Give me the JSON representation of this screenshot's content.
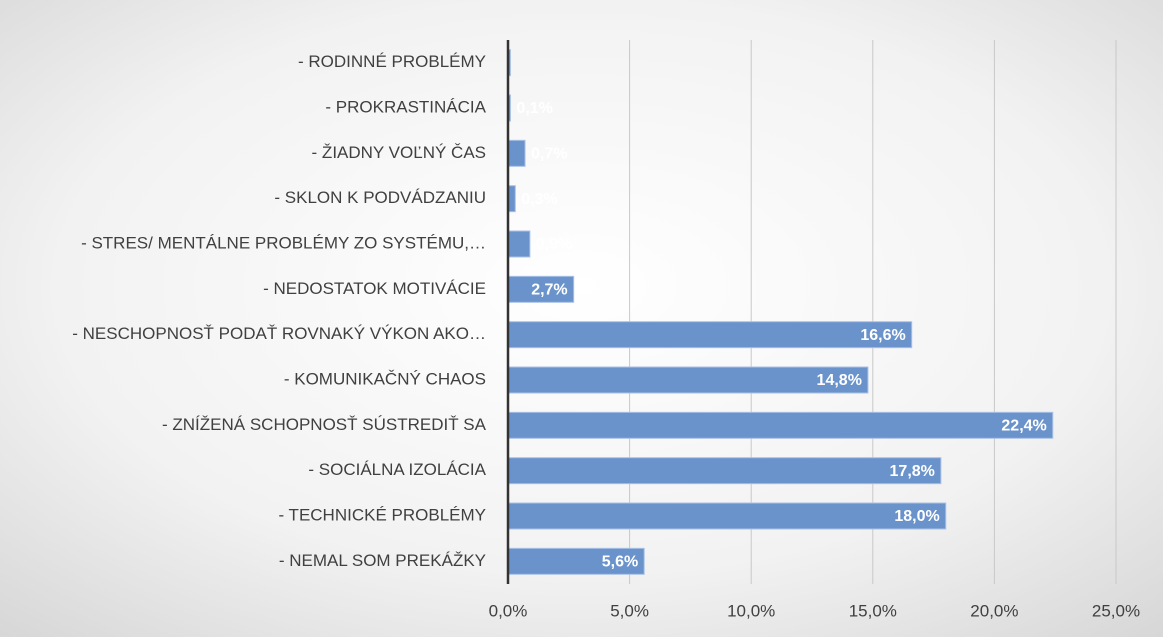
{
  "chart_data": {
    "type": "barh",
    "categories": [
      "- RODINNÉ PROBLÉMY",
      "- PROKRASTINÁCIA",
      "- ŽIADNY VOĽNÝ ČAS",
      "- SKLON K PODVÁDZANIU",
      "- STRES/ MENTÁLNE PROBLÉMY ZO SYSTÉMU,…",
      "- NEDOSTATOK MOTIVÁCIE",
      "- NESCHOPNOSŤ PODAŤ ROVNAKÝ VÝKON AKO…",
      "- KOMUNIKAČNÝ CHAOS",
      "- ZNÍŽENÁ SCHOPNOSŤ SÚSTREDIŤ SA",
      "- SOCIÁLNA IZOLÁCIA",
      "- TECHNICKÉ PROBLÉMY",
      "- NEMAL SOM PREKÁŽKY"
    ],
    "values": [
      0.1,
      0.1,
      0.7,
      0.3,
      0.9,
      2.7,
      16.6,
      14.8,
      22.4,
      17.8,
      18.0,
      5.6
    ],
    "value_labels": [
      null,
      "0,1%",
      "0,7%",
      "0,3%",
      "0,9%",
      "2,7%",
      "16,6%",
      "14,8%",
      "22,4%",
      "17,8%",
      "18,0%",
      "5,6%"
    ],
    "color": "#6b93cb",
    "xlim": [
      0,
      25
    ],
    "xticks": [
      {
        "value": 0,
        "label": "0,0%"
      },
      {
        "value": 5,
        "label": "5,0%"
      },
      {
        "value": 10,
        "label": "10,0%"
      },
      {
        "value": 15,
        "label": "15,0%"
      },
      {
        "value": 20,
        "label": "20,0%"
      },
      {
        "value": 25,
        "label": "25,0%"
      }
    ],
    "grid": true
  }
}
